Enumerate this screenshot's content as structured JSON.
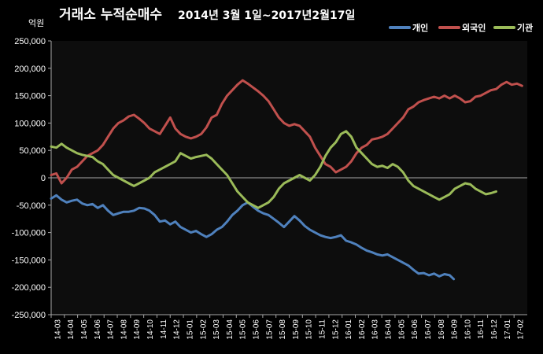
{
  "chart_data": {
    "type": "line",
    "title": "거래소 누적순매수",
    "subtitle": "2014년 3월 1일~2017년2월17일",
    "ylabel": "억원",
    "ylim": [
      -250000,
      250000
    ],
    "yticks": [
      250000,
      200000,
      150000,
      100000,
      50000,
      0,
      -50000,
      -100000,
      -150000,
      -200000,
      -250000
    ],
    "ytick_labels": [
      "250,000",
      "200,000",
      "150,000",
      "100,000",
      "50,000",
      "0",
      "-50,000",
      "-100,000",
      "-150,000",
      "-200,000",
      "-250,000"
    ],
    "x": [
      "14-03",
      "14-04",
      "14-05",
      "14-06",
      "14-07",
      "14-08",
      "14-09",
      "14-10",
      "14-11",
      "14-12",
      "15-01",
      "15-02",
      "15-03",
      "15-04",
      "15-05",
      "15-06",
      "15-07",
      "15-08",
      "15-09",
      "15-10",
      "15-11",
      "15-12",
      "16-01",
      "16-02",
      "16-03",
      "16-04",
      "16-05",
      "16-06",
      "16-07",
      "16-08",
      "16-09",
      "16-10",
      "16-11",
      "16-12",
      "17-01",
      "17-02"
    ],
    "grid": false,
    "legend_position": "top-right",
    "series": [
      {
        "name": "개인",
        "color": "#4f81bd",
        "values": [
          [
            0,
            -38000
          ],
          [
            0.5,
            -32000
          ],
          [
            1,
            -40000
          ],
          [
            1.5,
            -45000
          ],
          [
            2,
            -42000
          ],
          [
            2.5,
            -40000
          ],
          [
            3,
            -47000
          ],
          [
            3.5,
            -50000
          ],
          [
            4,
            -48000
          ],
          [
            4.5,
            -55000
          ],
          [
            5,
            -50000
          ],
          [
            5.5,
            -60000
          ],
          [
            6,
            -68000
          ],
          [
            6.5,
            -65000
          ],
          [
            7,
            -62000
          ],
          [
            7.5,
            -62000
          ],
          [
            8,
            -60000
          ],
          [
            8.5,
            -55000
          ],
          [
            9,
            -56000
          ],
          [
            9.5,
            -60000
          ],
          [
            10,
            -68000
          ],
          [
            10.5,
            -80000
          ],
          [
            11,
            -78000
          ],
          [
            11.5,
            -85000
          ],
          [
            12,
            -80000
          ],
          [
            12.5,
            -90000
          ],
          [
            13,
            -95000
          ],
          [
            13.5,
            -100000
          ],
          [
            14,
            -97000
          ],
          [
            14.5,
            -103000
          ],
          [
            15,
            -108000
          ],
          [
            15.5,
            -103000
          ],
          [
            16,
            -95000
          ],
          [
            16.5,
            -90000
          ],
          [
            17,
            -80000
          ],
          [
            17.5,
            -68000
          ],
          [
            18,
            -60000
          ],
          [
            18.5,
            -50000
          ],
          [
            19,
            -45000
          ],
          [
            19.5,
            -53000
          ],
          [
            20,
            -60000
          ],
          [
            20.5,
            -65000
          ],
          [
            21,
            -68000
          ],
          [
            21.5,
            -75000
          ],
          [
            22,
            -82000
          ],
          [
            22.5,
            -90000
          ],
          [
            23,
            -80000
          ],
          [
            23.5,
            -70000
          ],
          [
            24,
            -78000
          ],
          [
            24.5,
            -88000
          ],
          [
            25,
            -95000
          ],
          [
            25.5,
            -100000
          ],
          [
            26,
            -105000
          ],
          [
            26.5,
            -108000
          ],
          [
            27,
            -110000
          ],
          [
            27.5,
            -108000
          ],
          [
            28,
            -105000
          ],
          [
            28.5,
            -115000
          ],
          [
            29,
            -118000
          ],
          [
            29.5,
            -122000
          ],
          [
            30,
            -128000
          ],
          [
            30.5,
            -133000
          ],
          [
            31,
            -136000
          ],
          [
            31.5,
            -140000
          ],
          [
            32,
            -142000
          ],
          [
            32.5,
            -140000
          ],
          [
            33,
            -145000
          ],
          [
            33.5,
            -150000
          ],
          [
            34,
            -155000
          ],
          [
            34.5,
            -160000
          ],
          [
            35,
            -168000
          ],
          [
            35.5,
            -175000
          ],
          [
            36,
            -174000
          ],
          [
            36.5,
            -178000
          ],
          [
            37,
            -175000
          ],
          [
            37.5,
            -180000
          ],
          [
            38,
            -176000
          ],
          [
            38.5,
            -178000
          ],
          [
            38.9,
            -185000
          ]
        ]
      },
      {
        "name": "외국인",
        "color": "#c0504d",
        "values": [
          [
            0,
            5000
          ],
          [
            0.5,
            8000
          ],
          [
            1,
            -10000
          ],
          [
            1.5,
            0
          ],
          [
            2,
            15000
          ],
          [
            2.5,
            20000
          ],
          [
            3,
            30000
          ],
          [
            3.5,
            40000
          ],
          [
            4,
            45000
          ],
          [
            4.5,
            50000
          ],
          [
            5,
            60000
          ],
          [
            5.5,
            75000
          ],
          [
            6,
            90000
          ],
          [
            6.5,
            100000
          ],
          [
            7,
            105000
          ],
          [
            7.5,
            112000
          ],
          [
            8,
            115000
          ],
          [
            8.5,
            108000
          ],
          [
            9,
            100000
          ],
          [
            9.5,
            90000
          ],
          [
            10,
            85000
          ],
          [
            10.5,
            80000
          ],
          [
            11,
            95000
          ],
          [
            11.5,
            110000
          ],
          [
            12,
            90000
          ],
          [
            12.5,
            80000
          ],
          [
            13,
            75000
          ],
          [
            13.5,
            72000
          ],
          [
            14,
            75000
          ],
          [
            14.5,
            80000
          ],
          [
            15,
            92000
          ],
          [
            15.5,
            110000
          ],
          [
            16,
            115000
          ],
          [
            16.5,
            135000
          ],
          [
            17,
            150000
          ],
          [
            17.5,
            160000
          ],
          [
            18,
            170000
          ],
          [
            18.5,
            178000
          ],
          [
            19,
            172000
          ],
          [
            19.5,
            165000
          ],
          [
            20,
            158000
          ],
          [
            20.5,
            150000
          ],
          [
            21,
            140000
          ],
          [
            21.5,
            125000
          ],
          [
            22,
            110000
          ],
          [
            22.5,
            100000
          ],
          [
            23,
            95000
          ],
          [
            23.5,
            98000
          ],
          [
            24,
            95000
          ],
          [
            24.5,
            85000
          ],
          [
            25,
            75000
          ],
          [
            25.5,
            55000
          ],
          [
            26,
            40000
          ],
          [
            26.5,
            25000
          ],
          [
            27,
            20000
          ],
          [
            27.5,
            10000
          ],
          [
            28,
            15000
          ],
          [
            28.5,
            20000
          ],
          [
            29,
            30000
          ],
          [
            29.5,
            45000
          ],
          [
            30,
            55000
          ],
          [
            30.5,
            60000
          ],
          [
            31,
            70000
          ],
          [
            31.5,
            72000
          ],
          [
            32,
            75000
          ],
          [
            32.5,
            80000
          ],
          [
            33,
            90000
          ],
          [
            33.5,
            100000
          ],
          [
            34,
            110000
          ],
          [
            34.5,
            125000
          ],
          [
            35,
            130000
          ],
          [
            35.5,
            138000
          ],
          [
            36,
            142000
          ],
          [
            36.5,
            145000
          ],
          [
            37,
            148000
          ],
          [
            37.5,
            145000
          ],
          [
            38,
            150000
          ],
          [
            38.5,
            145000
          ],
          [
            39,
            150000
          ],
          [
            39.5,
            145000
          ],
          [
            40,
            138000
          ],
          [
            40.5,
            140000
          ],
          [
            41,
            148000
          ],
          [
            41.5,
            150000
          ],
          [
            42,
            155000
          ],
          [
            42.5,
            160000
          ],
          [
            43,
            162000
          ],
          [
            43.5,
            170000
          ],
          [
            44,
            175000
          ],
          [
            44.5,
            170000
          ],
          [
            45,
            172000
          ],
          [
            45.5,
            168000
          ]
        ]
      },
      {
        "name": "기관",
        "color": "#9bbb59",
        "values": [
          [
            0,
            57000
          ],
          [
            0.5,
            55000
          ],
          [
            1,
            62000
          ],
          [
            1.5,
            55000
          ],
          [
            2,
            50000
          ],
          [
            2.5,
            45000
          ],
          [
            3,
            42000
          ],
          [
            3.5,
            40000
          ],
          [
            4,
            38000
          ],
          [
            4.5,
            30000
          ],
          [
            5,
            25000
          ],
          [
            5.5,
            15000
          ],
          [
            6,
            5000
          ],
          [
            6.5,
            0
          ],
          [
            7,
            -5000
          ],
          [
            7.5,
            -10000
          ],
          [
            8,
            -15000
          ],
          [
            8.5,
            -10000
          ],
          [
            9,
            -5000
          ],
          [
            9.5,
            0
          ],
          [
            10,
            10000
          ],
          [
            10.5,
            15000
          ],
          [
            11,
            20000
          ],
          [
            11.5,
            25000
          ],
          [
            12,
            30000
          ],
          [
            12.5,
            45000
          ],
          [
            13,
            40000
          ],
          [
            13.5,
            35000
          ],
          [
            14,
            38000
          ],
          [
            14.5,
            40000
          ],
          [
            15,
            42000
          ],
          [
            15.5,
            35000
          ],
          [
            16,
            25000
          ],
          [
            16.5,
            15000
          ],
          [
            17,
            5000
          ],
          [
            17.5,
            -10000
          ],
          [
            18,
            -25000
          ],
          [
            18.5,
            -35000
          ],
          [
            19,
            -45000
          ],
          [
            19.5,
            -50000
          ],
          [
            20,
            -55000
          ],
          [
            20.5,
            -50000
          ],
          [
            21,
            -45000
          ],
          [
            21.5,
            -35000
          ],
          [
            22,
            -20000
          ],
          [
            22.5,
            -10000
          ],
          [
            23,
            -5000
          ],
          [
            23.5,
            0
          ],
          [
            24,
            5000
          ],
          [
            24.5,
            0
          ],
          [
            25,
            -5000
          ],
          [
            25.5,
            5000
          ],
          [
            26,
            20000
          ],
          [
            26.5,
            40000
          ],
          [
            27,
            55000
          ],
          [
            27.5,
            65000
          ],
          [
            28,
            80000
          ],
          [
            28.5,
            85000
          ],
          [
            29,
            75000
          ],
          [
            29.5,
            55000
          ],
          [
            30,
            45000
          ],
          [
            30.5,
            35000
          ],
          [
            31,
            25000
          ],
          [
            31.5,
            20000
          ],
          [
            32,
            22000
          ],
          [
            32.5,
            18000
          ],
          [
            33,
            25000
          ],
          [
            33.5,
            20000
          ],
          [
            34,
            10000
          ],
          [
            34.5,
            -5000
          ],
          [
            35,
            -15000
          ],
          [
            35.5,
            -20000
          ],
          [
            36,
            -25000
          ],
          [
            36.5,
            -30000
          ],
          [
            37,
            -35000
          ],
          [
            37.5,
            -40000
          ],
          [
            38,
            -35000
          ],
          [
            38.5,
            -30000
          ],
          [
            39,
            -20000
          ],
          [
            39.5,
            -15000
          ],
          [
            40,
            -10000
          ],
          [
            40.5,
            -12000
          ],
          [
            41,
            -20000
          ],
          [
            41.5,
            -25000
          ],
          [
            42,
            -30000
          ],
          [
            42.5,
            -28000
          ],
          [
            43,
            -25000
          ]
        ]
      }
    ]
  },
  "x_positions": [
    0,
    0.95,
    1.9,
    2.85,
    3.8,
    4.75,
    5.7,
    6.65,
    7.6,
    8.55,
    9.5,
    10.45,
    11.4,
    12.35,
    13.3,
    14.25,
    15.2,
    16.15,
    17.1,
    18.05,
    19.0,
    19.95,
    20.9,
    21.85,
    22.8,
    23.75,
    24.7,
    25.65,
    26.6,
    27.55,
    28.5,
    29.45,
    30.4,
    31.35,
    32.3,
    33.25
  ]
}
